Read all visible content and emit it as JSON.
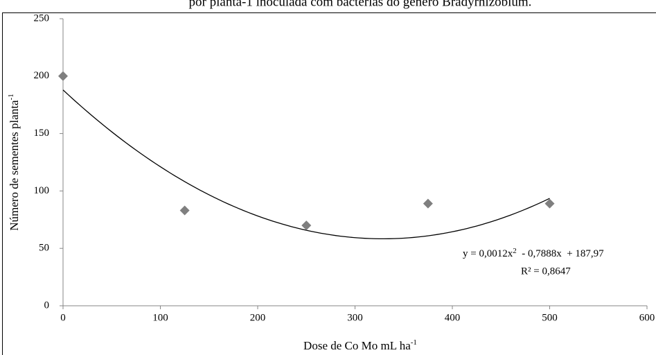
{
  "chart_data": {
    "type": "scatter",
    "caption": "por planta-1 inoculada com bactérias do gênero Bradyrhizobium.",
    "xlabel": "Dose de Co Mo mL ha",
    "xlabel_sup": "-1",
    "ylabel": "Número de sementes planta",
    "ylabel_sup": "-1",
    "x": [
      0,
      125,
      250,
      375,
      500
    ],
    "values": [
      200,
      83,
      70,
      89,
      89
    ],
    "color": "#7f7f7f",
    "xlim": [
      0,
      600
    ],
    "xticks": [
      0,
      100,
      200,
      300,
      400,
      500,
      600
    ],
    "ylim": [
      0,
      250
    ],
    "yticks": [
      0,
      50,
      100,
      150,
      200,
      250
    ],
    "grid": false,
    "trendline": {
      "type": "polynomial",
      "coefficients": [
        0.0012,
        -0.7888,
        187.97
      ],
      "xrange": [
        0,
        500
      ],
      "color": "#000000",
      "equation": [
        "y = 0,0012x",
        "2",
        "  - 0,7888x  + 187,97"
      ],
      "r2": "R² = 0,8647"
    }
  }
}
